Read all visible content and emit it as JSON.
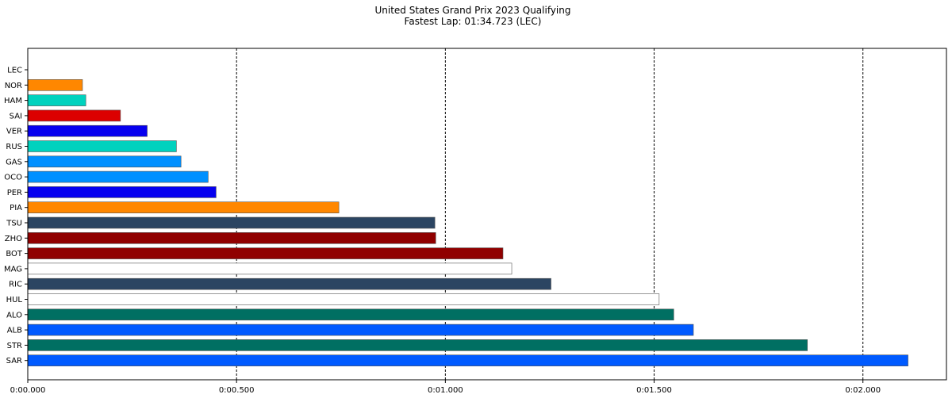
{
  "chart_data": {
    "type": "bar",
    "orientation": "horizontal",
    "title": "United States Grand Prix 2023 Qualifying",
    "subtitle": "Fastest Lap: 01:34.723 (LEC)",
    "xlabel": "",
    "ylabel": "",
    "xlim": [
      0,
      2.2
    ],
    "x_unit": "seconds",
    "x_ticks": [
      {
        "value": 0.0,
        "label": "0:00.000"
      },
      {
        "value": 0.5,
        "label": "0:00.500"
      },
      {
        "value": 1.0,
        "label": "0:01.000"
      },
      {
        "value": 1.5,
        "label": "0:01.500"
      },
      {
        "value": 2.0,
        "label": "0:02.000"
      }
    ],
    "grid": "vertical dashed at x ticks",
    "categories": [
      "LEC",
      "NOR",
      "HAM",
      "SAI",
      "VER",
      "RUS",
      "GAS",
      "OCO",
      "PER",
      "PIA",
      "TSU",
      "ZHO",
      "BOT",
      "MAG",
      "RIC",
      "HUL",
      "ALO",
      "ALB",
      "STR",
      "SAR"
    ],
    "values": [
      0.0,
      0.131,
      0.139,
      0.222,
      0.286,
      0.356,
      0.367,
      0.432,
      0.451,
      0.745,
      0.975,
      0.977,
      1.138,
      1.159,
      1.253,
      1.512,
      1.547,
      1.594,
      1.867,
      2.108
    ],
    "colors": [
      "#dc0000",
      "#ff8700",
      "#00d2be",
      "#dc0000",
      "#0600ef",
      "#00d2be",
      "#0090ff",
      "#0090ff",
      "#0600ef",
      "#ff8700",
      "#2b4562",
      "#900000",
      "#900000",
      "#ffffff",
      "#2b4562",
      "#ffffff",
      "#006f62",
      "#005aff",
      "#006f62",
      "#005aff"
    ]
  }
}
